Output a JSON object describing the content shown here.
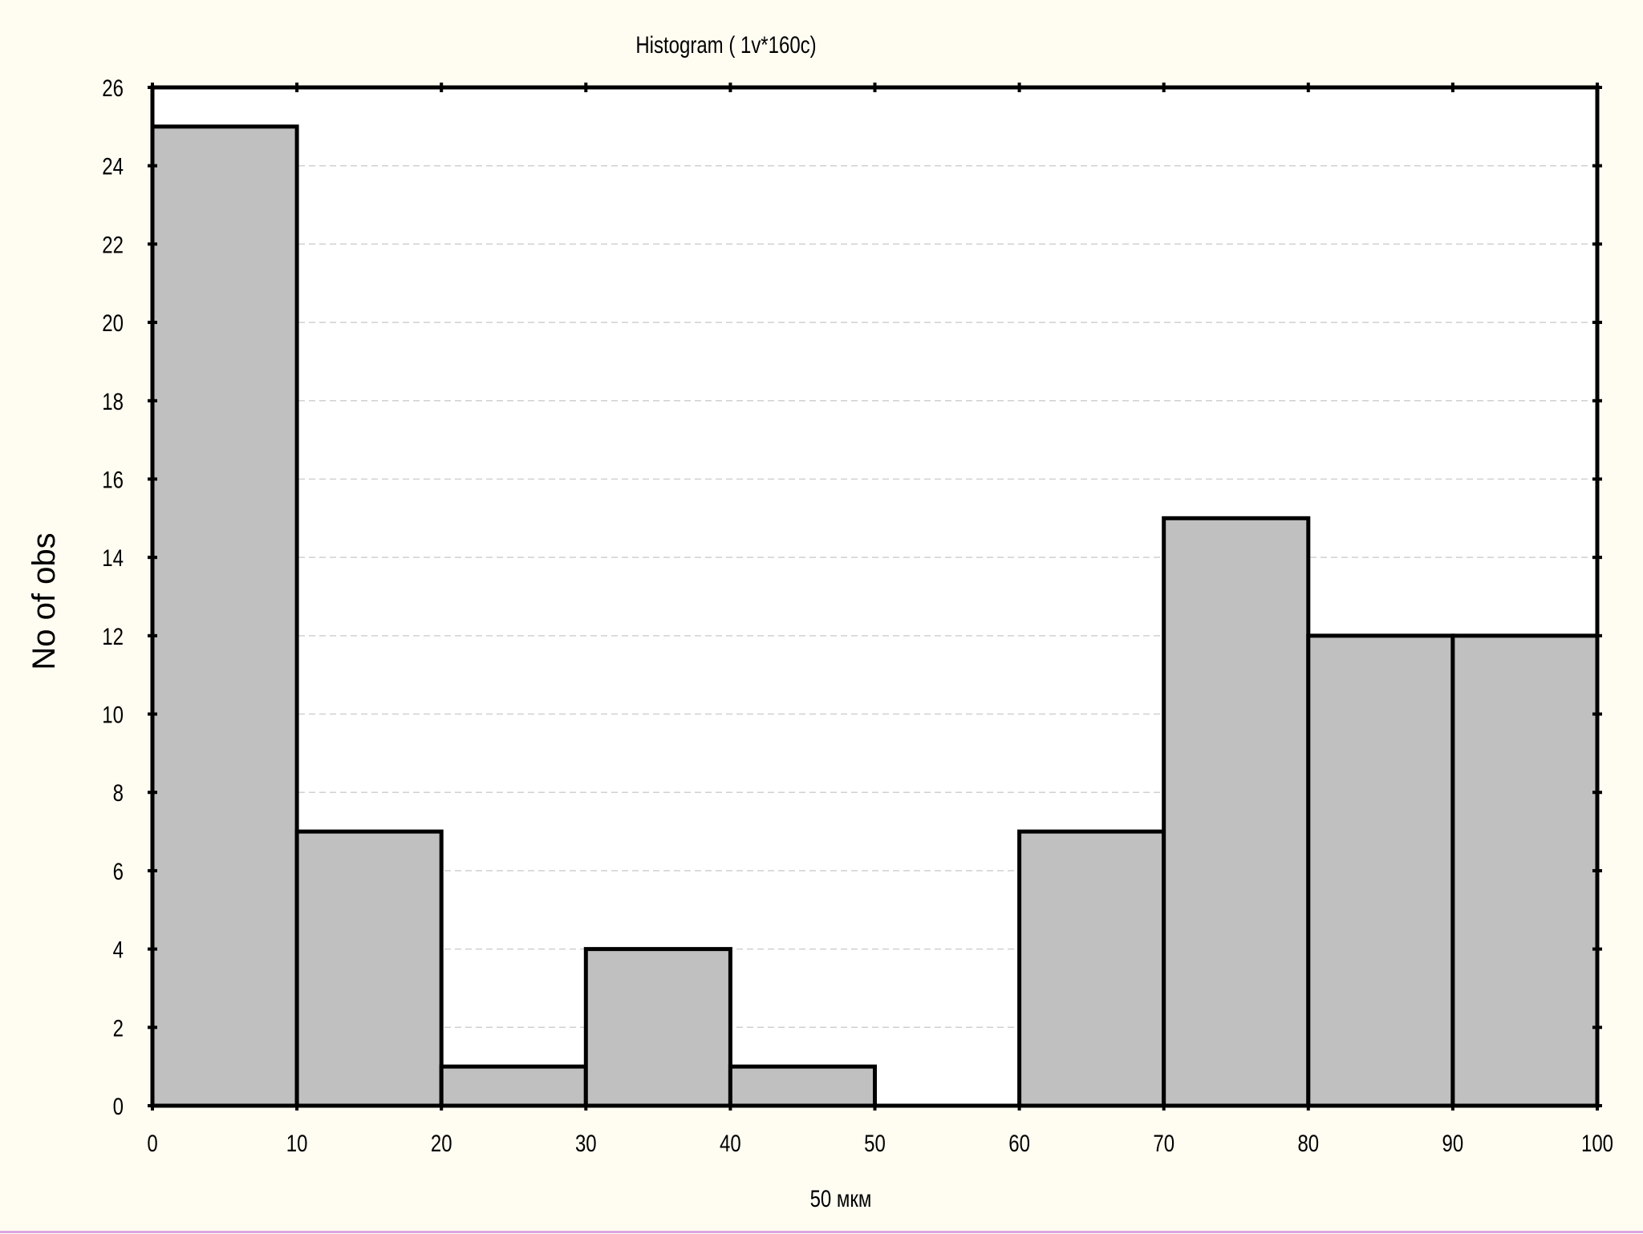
{
  "chart_data": {
    "type": "bar",
    "title": "Histogram ( 1v*160c)",
    "xlabel": "50 мкм",
    "ylabel": "No of obs",
    "bins": [
      {
        "from": 0,
        "to": 10,
        "count": 25
      },
      {
        "from": 10,
        "to": 20,
        "count": 7
      },
      {
        "from": 20,
        "to": 30,
        "count": 1
      },
      {
        "from": 30,
        "to": 40,
        "count": 4
      },
      {
        "from": 40,
        "to": 50,
        "count": 1
      },
      {
        "from": 50,
        "to": 60,
        "count": 0
      },
      {
        "from": 60,
        "to": 70,
        "count": 7
      },
      {
        "from": 70,
        "to": 80,
        "count": 15
      },
      {
        "from": 80,
        "to": 90,
        "count": 12
      },
      {
        "from": 90,
        "to": 100,
        "count": 12
      }
    ],
    "xlim": [
      0,
      100
    ],
    "ylim": [
      0,
      26
    ],
    "x_ticks": [
      0,
      10,
      20,
      30,
      40,
      50,
      60,
      70,
      80,
      90,
      100
    ],
    "y_ticks": [
      0,
      2,
      4,
      6,
      8,
      10,
      12,
      14,
      16,
      18,
      20,
      22,
      24,
      26
    ],
    "grid": true,
    "colors": {
      "bar_fill": "#c0c0c0",
      "bar_stroke": "#000000",
      "plot_background": "#ffffff",
      "page_background": "#fffdf2",
      "grid": "#d0d0d0"
    }
  }
}
